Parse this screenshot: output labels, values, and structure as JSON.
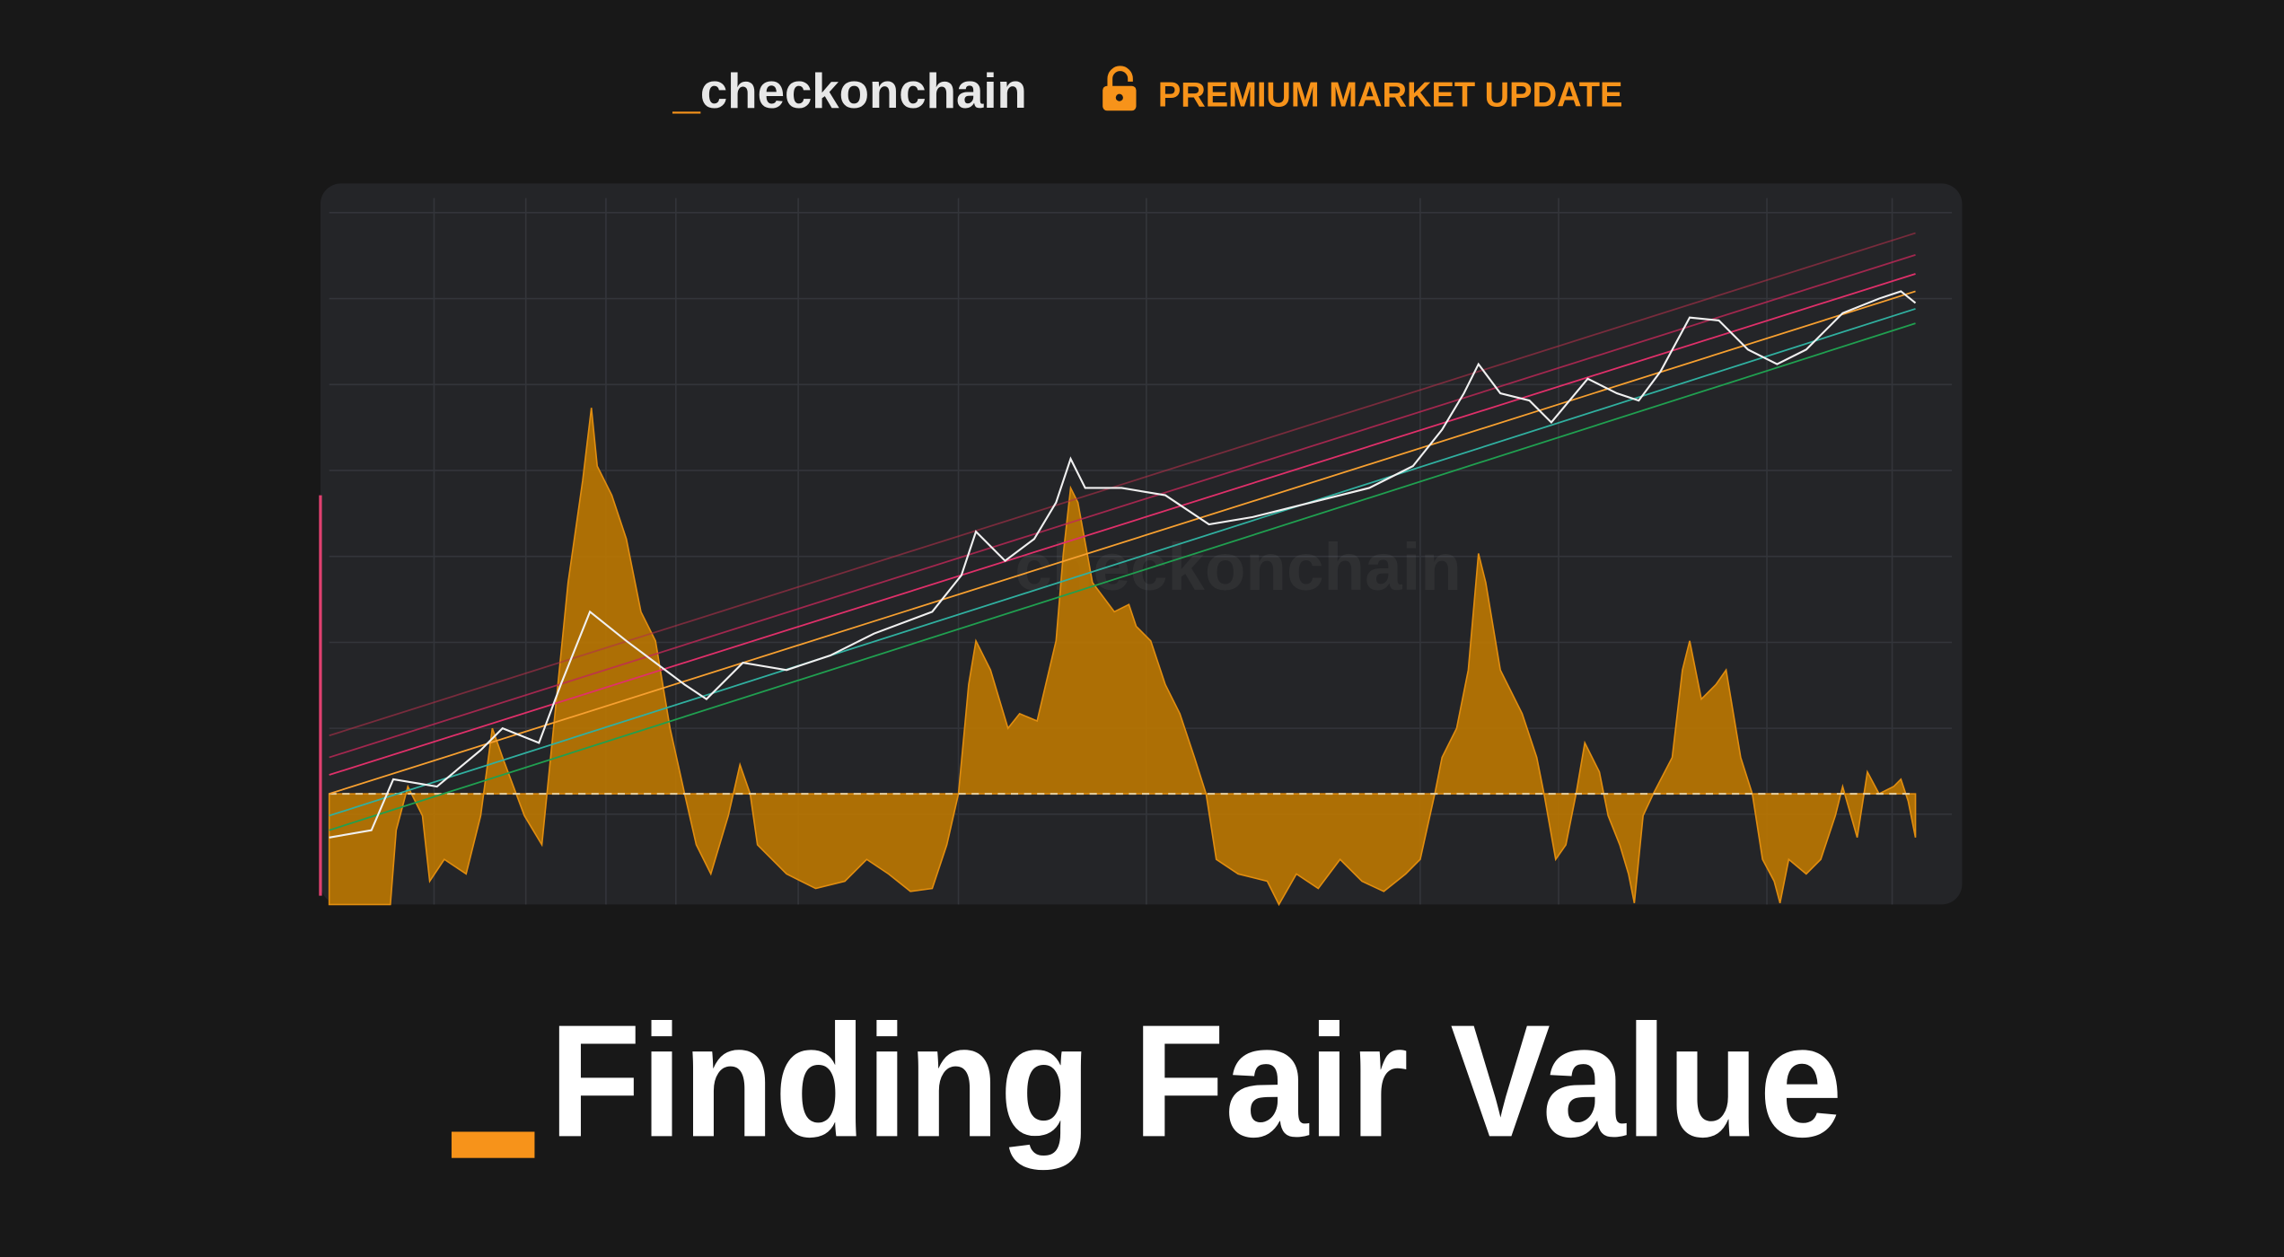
{
  "header": {
    "brand_prefix": "_",
    "brand": "checkonchain",
    "badge": "PREMIUM MARKET UPDATE"
  },
  "chart": {
    "watermark": "checkonchain"
  },
  "title": {
    "text": "Finding Fair Value"
  }
}
